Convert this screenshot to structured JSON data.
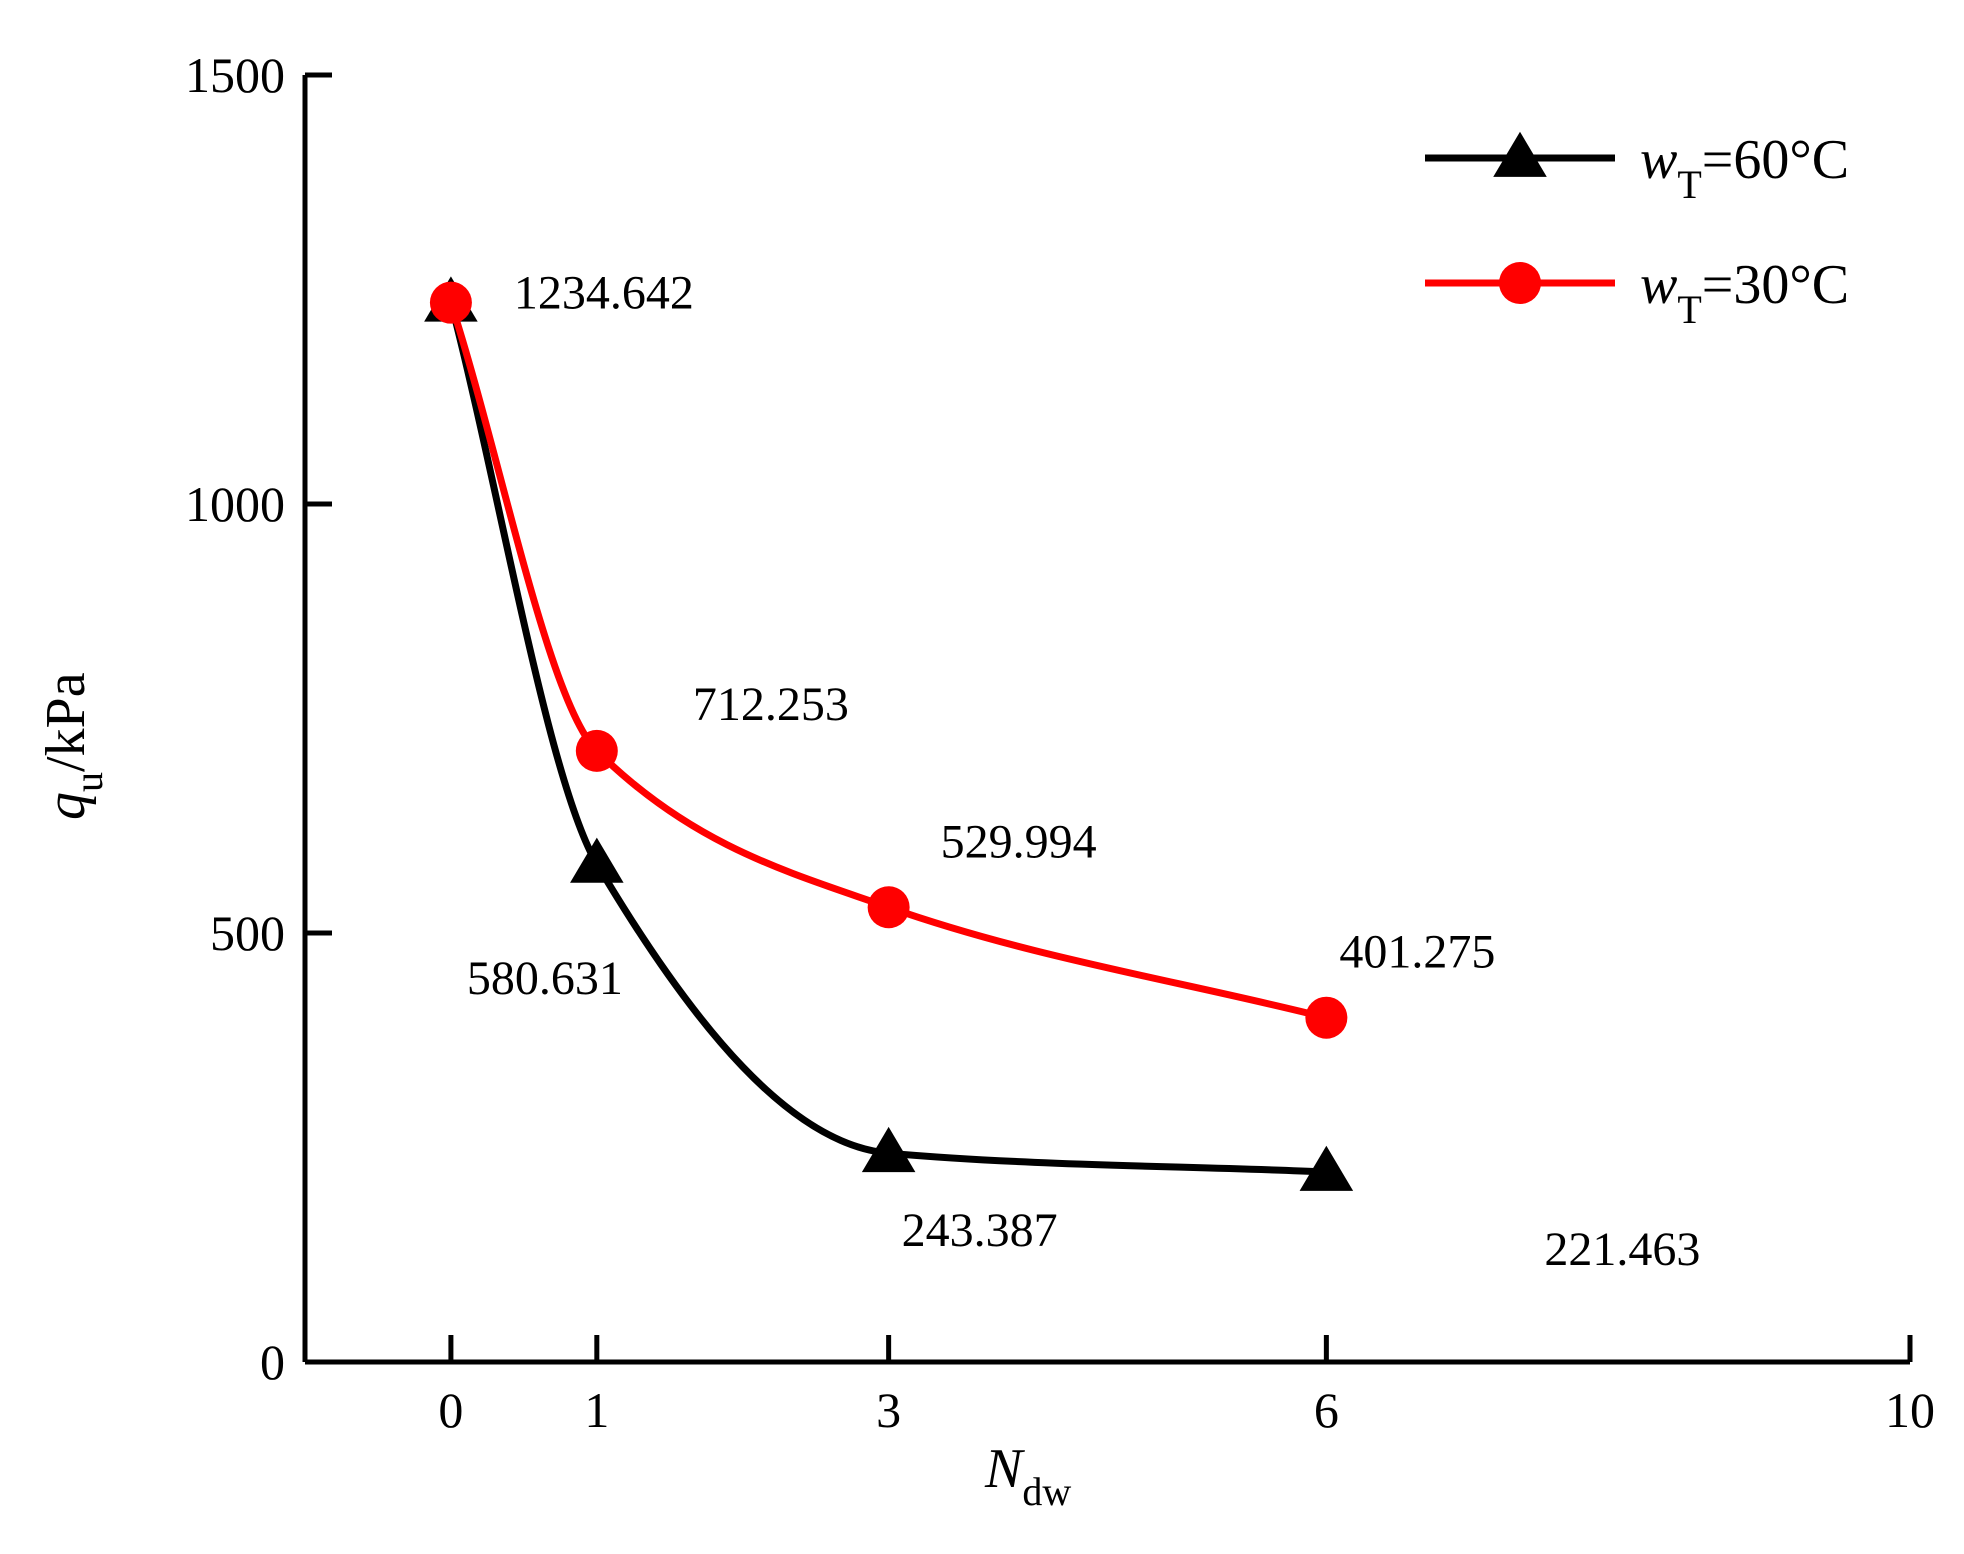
{
  "chart_data": {
    "type": "line",
    "xlabel": {
      "symbol": "N",
      "subscript": "dw"
    },
    "ylabel": {
      "symbol": "q",
      "subscript": "u",
      "unit": "/kPa"
    },
    "xlim": [
      -1,
      10
    ],
    "ylim": [
      0,
      1500
    ],
    "x_ticks": [
      0,
      1,
      3,
      6,
      10
    ],
    "y_ticks": [
      0,
      500,
      1000,
      1500
    ],
    "legend_position": "top-right",
    "grid": false,
    "series": [
      {
        "name": "wT=60°C",
        "legend": {
          "symbol": "w",
          "subscript": "T",
          "suffix": "=60°C"
        },
        "color": "#000000",
        "marker": "triangle",
        "x": [
          0,
          1,
          3,
          6
        ],
        "y": [
          1234.642,
          580.631,
          243.387,
          221.463
        ],
        "labels": [
          "",
          "580.631",
          "243.387",
          "221.463"
        ]
      },
      {
        "name": "wT=30°C",
        "legend": {
          "symbol": "w",
          "subscript": "T",
          "suffix": "=30°C"
        },
        "color": "#ff0000",
        "marker": "circle",
        "x": [
          0,
          1,
          3,
          6
        ],
        "y": [
          1234.642,
          712.253,
          529.994,
          401.275
        ],
        "labels": [
          "1234.642",
          "712.253",
          "529.994",
          "401.275"
        ]
      }
    ]
  }
}
